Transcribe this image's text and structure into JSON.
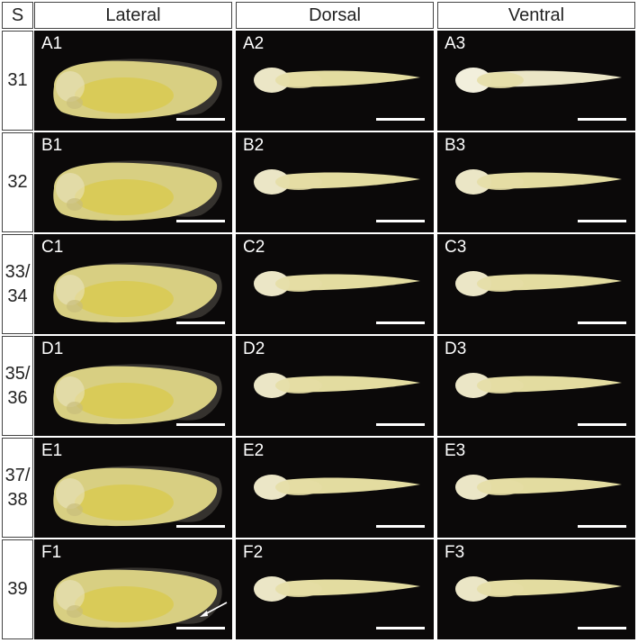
{
  "header": {
    "stage_col": "S",
    "columns": [
      "Lateral",
      "Dorsal",
      "Ventral"
    ]
  },
  "rows": [
    {
      "stage": "31",
      "labels": [
        "A1",
        "A2",
        "A3"
      ]
    },
    {
      "stage": "32",
      "labels": [
        "B1",
        "B2",
        "B3"
      ]
    },
    {
      "stage": "33/\n34",
      "labels": [
        "C1",
        "C2",
        "C3"
      ]
    },
    {
      "stage": "35/\n36",
      "labels": [
        "D1",
        "D2",
        "D3"
      ]
    },
    {
      "stage": "37/\n38",
      "labels": [
        "E1",
        "E2",
        "E3"
      ]
    },
    {
      "stage": "39",
      "labels": [
        "F1",
        "F2",
        "F3"
      ]
    }
  ],
  "colors": {
    "panel_background": "#0b0909",
    "embryo_body": "#d8cf82",
    "embryo_belly": "#d9c94a",
    "embryo_pale": "#ebe6c6",
    "fin": "#3d3a35",
    "scale_bar": "#ffffff"
  },
  "annotations": {
    "arrow_panel": "F1",
    "arrow_icon": "white-arrow-icon"
  }
}
